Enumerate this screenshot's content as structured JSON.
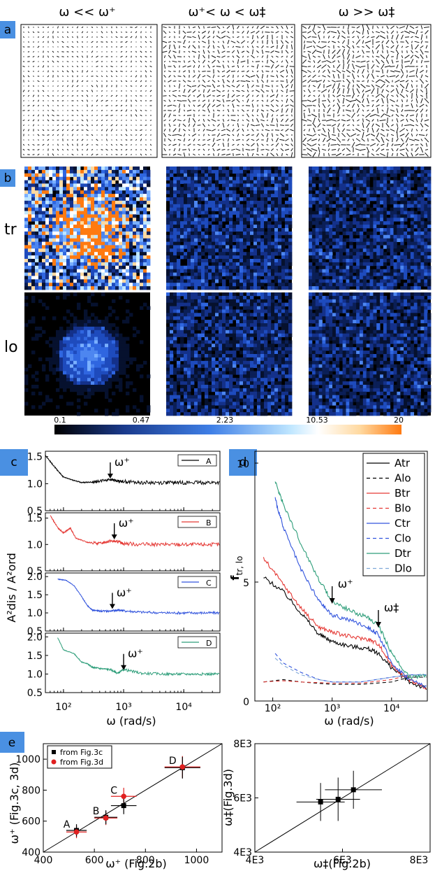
{
  "header": {
    "col1": "ω << ω⁺",
    "col2": "ω⁺< ω < ω‡",
    "col3": "ω >> ω‡"
  },
  "panels": {
    "a": "a",
    "b": "b",
    "c": "c",
    "d": "d",
    "e": "e"
  },
  "rows": {
    "tr": "tr",
    "lo": "lo"
  },
  "colorbar": {
    "ticks": [
      "0.1",
      "0.47",
      "2.23",
      "10.53",
      "20"
    ],
    "colors": [
      "#000000",
      "#1a3a8c",
      "#3f7fe6",
      "#bfe6ff",
      "#ffffff",
      "#ffd9a0",
      "#ff7a10"
    ]
  },
  "chart_data": [
    {
      "id": "c",
      "type": "line",
      "ylabel": "A²dis / A²ord",
      "xlabel": "ω (rad/s)",
      "xscale": "log",
      "xlim": [
        50,
        40000
      ],
      "xticks": [
        "10²",
        "10³",
        "10⁴"
      ],
      "annotation": "ω⁺",
      "series": [
        {
          "name": "A",
          "color": "#000000",
          "ylim": [
            0.5,
            1.6
          ],
          "yticks": [
            "0.5",
            "1.0",
            "1.5"
          ],
          "x": [
            50,
            70,
            100,
            150,
            200,
            300,
            400,
            600,
            800,
            1000,
            2000,
            5000,
            10000,
            20000,
            40000
          ],
          "y": [
            1.52,
            1.32,
            1.12,
            1.06,
            1.02,
            1.03,
            1.05,
            1.08,
            1.05,
            1.04,
            1.02,
            1.02,
            1.02,
            1.02,
            1.02
          ],
          "marker_x": 600
        },
        {
          "name": "B",
          "color": "#e53935",
          "ylim": [
            0.5,
            1.6
          ],
          "yticks": [
            "0.5",
            "1.0",
            "1.5"
          ],
          "x": [
            60,
            80,
            100,
            130,
            160,
            250,
            400,
            600,
            800,
            1000,
            2000,
            5000,
            10000,
            20000,
            40000
          ],
          "y": [
            1.55,
            1.32,
            1.22,
            1.31,
            1.12,
            1.04,
            1.02,
            1.07,
            1.05,
            1.02,
            1.0,
            1.0,
            1.0,
            1.0,
            1.0
          ],
          "marker_x": 700
        },
        {
          "name": "C",
          "color": "#3355dd",
          "ylim": [
            0.5,
            2.1
          ],
          "yticks": [
            "0.5",
            "1.0",
            "1.5",
            "2.0"
          ],
          "x": [
            80,
            110,
            150,
            200,
            250,
            300,
            400,
            600,
            800,
            1000,
            2000,
            5000,
            10000,
            20000,
            40000
          ],
          "y": [
            1.93,
            1.9,
            1.75,
            1.45,
            1.2,
            1.08,
            1.05,
            1.05,
            1.08,
            1.06,
            1.02,
            1.0,
            1.0,
            1.0,
            1.0
          ],
          "marker_x": 650
        },
        {
          "name": "D",
          "color": "#2e9e7a",
          "ylim": [
            0.5,
            2.1
          ],
          "yticks": [
            "0.5",
            "1.0",
            "1.5",
            "2.0"
          ],
          "x": [
            80,
            100,
            150,
            200,
            250,
            300,
            400,
            600,
            800,
            1000,
            2000,
            5000,
            10000,
            20000,
            40000
          ],
          "y": [
            1.98,
            1.65,
            1.55,
            1.32,
            1.28,
            1.18,
            1.15,
            1.12,
            1.02,
            1.12,
            1.02,
            1.0,
            1.0,
            1.0,
            1.0
          ],
          "marker_x": 1000
        }
      ]
    },
    {
      "id": "d",
      "type": "line",
      "ylabel": "f",
      "ylabel_sub": "tr, lo",
      "xlabel": "ω (rad/s)",
      "xscale": "log",
      "xlim": [
        50,
        40000
      ],
      "ylim": [
        0,
        10.5
      ],
      "yticks": [
        "0",
        "5",
        "10"
      ],
      "xticks": [
        "10²",
        "10³",
        "10⁴"
      ],
      "annotations": [
        {
          "text": "ω⁺",
          "x": 1000,
          "y": 4.0
        },
        {
          "text": "ω‡",
          "x": 6000,
          "y": 3.0
        }
      ],
      "legend": [
        "Atr",
        "Alo",
        "Btr",
        "Blo",
        "Ctr",
        "Clo",
        "Dtr",
        "Dlo"
      ],
      "series": [
        {
          "name": "Atr",
          "color": "#000000",
          "dash": false,
          "x": [
            70,
            150,
            300,
            600,
            1000,
            2000,
            4000,
            6000,
            10000,
            20000,
            40000
          ],
          "y": [
            5.2,
            4.6,
            3.7,
            2.8,
            2.5,
            2.3,
            2.2,
            2.0,
            1.4,
            0.8,
            0.5
          ]
        },
        {
          "name": "Alo",
          "color": "#000000",
          "dash": true,
          "x": [
            70,
            150,
            300,
            1000,
            3000,
            10000,
            20000,
            40000
          ],
          "y": [
            0.8,
            0.9,
            0.8,
            0.7,
            0.7,
            0.8,
            1.0,
            1.0
          ]
        },
        {
          "name": "Btr",
          "color": "#e53935",
          "dash": false,
          "x": [
            70,
            150,
            300,
            600,
            1000,
            2000,
            4000,
            6000,
            10000,
            20000,
            40000
          ],
          "y": [
            6.0,
            4.9,
            3.9,
            3.1,
            2.9,
            2.7,
            2.6,
            2.4,
            1.5,
            0.9,
            0.5
          ]
        },
        {
          "name": "Blo",
          "color": "#e53935",
          "dash": true,
          "x": [
            70,
            150,
            300,
            1000,
            3000,
            10000,
            20000,
            40000
          ],
          "y": [
            0.8,
            0.85,
            0.8,
            0.75,
            0.75,
            0.9,
            1.1,
            1.1
          ]
        },
        {
          "name": "Ctr",
          "color": "#3355dd",
          "dash": false,
          "x": [
            110,
            150,
            300,
            600,
            1000,
            2000,
            4000,
            6000,
            10000,
            20000,
            40000
          ],
          "y": [
            8.5,
            7.3,
            5.5,
            4.2,
            3.6,
            3.4,
            3.1,
            2.8,
            1.6,
            0.9,
            0.6
          ]
        },
        {
          "name": "Clo",
          "color": "#3355dd",
          "dash": true,
          "x": [
            110,
            150,
            300,
            600,
            1000,
            3000,
            10000,
            20000,
            40000
          ],
          "y": [
            2.0,
            1.6,
            1.2,
            0.9,
            0.8,
            0.8,
            1.0,
            1.1,
            1.1
          ]
        },
        {
          "name": "Dtr",
          "color": "#2e9e7a",
          "dash": false,
          "x": [
            110,
            150,
            300,
            600,
            1000,
            2000,
            4000,
            6000,
            10000,
            20000,
            40000
          ],
          "y": [
            9.2,
            8.3,
            6.6,
            5.1,
            4.2,
            3.8,
            3.5,
            3.2,
            2.0,
            1.0,
            1.1
          ]
        },
        {
          "name": "Dlo",
          "color": "#7fa8d8",
          "dash": true,
          "x": [
            110,
            150,
            300,
            600,
            1000,
            3000,
            10000,
            20000,
            40000
          ],
          "y": [
            1.8,
            1.5,
            1.1,
            0.9,
            0.8,
            0.8,
            1.0,
            1.1,
            1.1
          ]
        }
      ]
    },
    {
      "id": "e-left",
      "type": "scatter",
      "xlabel": "ω⁺ (Fig.2b)",
      "ylabel": "ω⁺ (Fig.3c, 3d)",
      "xlim": [
        400,
        1100
      ],
      "ylim": [
        400,
        1100
      ],
      "xticks": [
        "400",
        "600",
        "800",
        "1000"
      ],
      "yticks": [
        "400",
        "600",
        "800",
        "1000"
      ],
      "legend": [
        "from Fig.3c",
        "from Fig.3d"
      ],
      "points": [
        {
          "label": "A",
          "x": 530,
          "y3c": 540,
          "y3d": 530,
          "xerr": 40,
          "yerr": 40
        },
        {
          "label": "B",
          "x": 645,
          "y3c": 625,
          "y3d": 620,
          "xerr": 45,
          "yerr": 45
        },
        {
          "label": "C",
          "x": 715,
          "y3c": 700,
          "y3d": 760,
          "xerr": 50,
          "yerr": 55
        },
        {
          "label": "D",
          "x": 945,
          "y3c": 945,
          "y3d": 950,
          "xerr": 70,
          "yerr": 70
        }
      ]
    },
    {
      "id": "e-right",
      "type": "scatter",
      "xlabel": "ω‡(Fig.2b)",
      "ylabel": "ω‡(Fig.3d)",
      "xlim": [
        4000,
        8000
      ],
      "ylim": [
        4000,
        8000
      ],
      "xticks": [
        "4E3",
        "6E3",
        "8E3"
      ],
      "yticks": [
        "4E3",
        "6E3",
        "8E3"
      ],
      "points": [
        {
          "x": 5500,
          "y": 5850,
          "xerr": 550,
          "yerr": 700
        },
        {
          "x": 5900,
          "y": 5950,
          "xerr": 500,
          "yerr": 800
        },
        {
          "x": 6250,
          "y": 6300,
          "xerr": 650,
          "yerr": 700
        }
      ]
    }
  ]
}
